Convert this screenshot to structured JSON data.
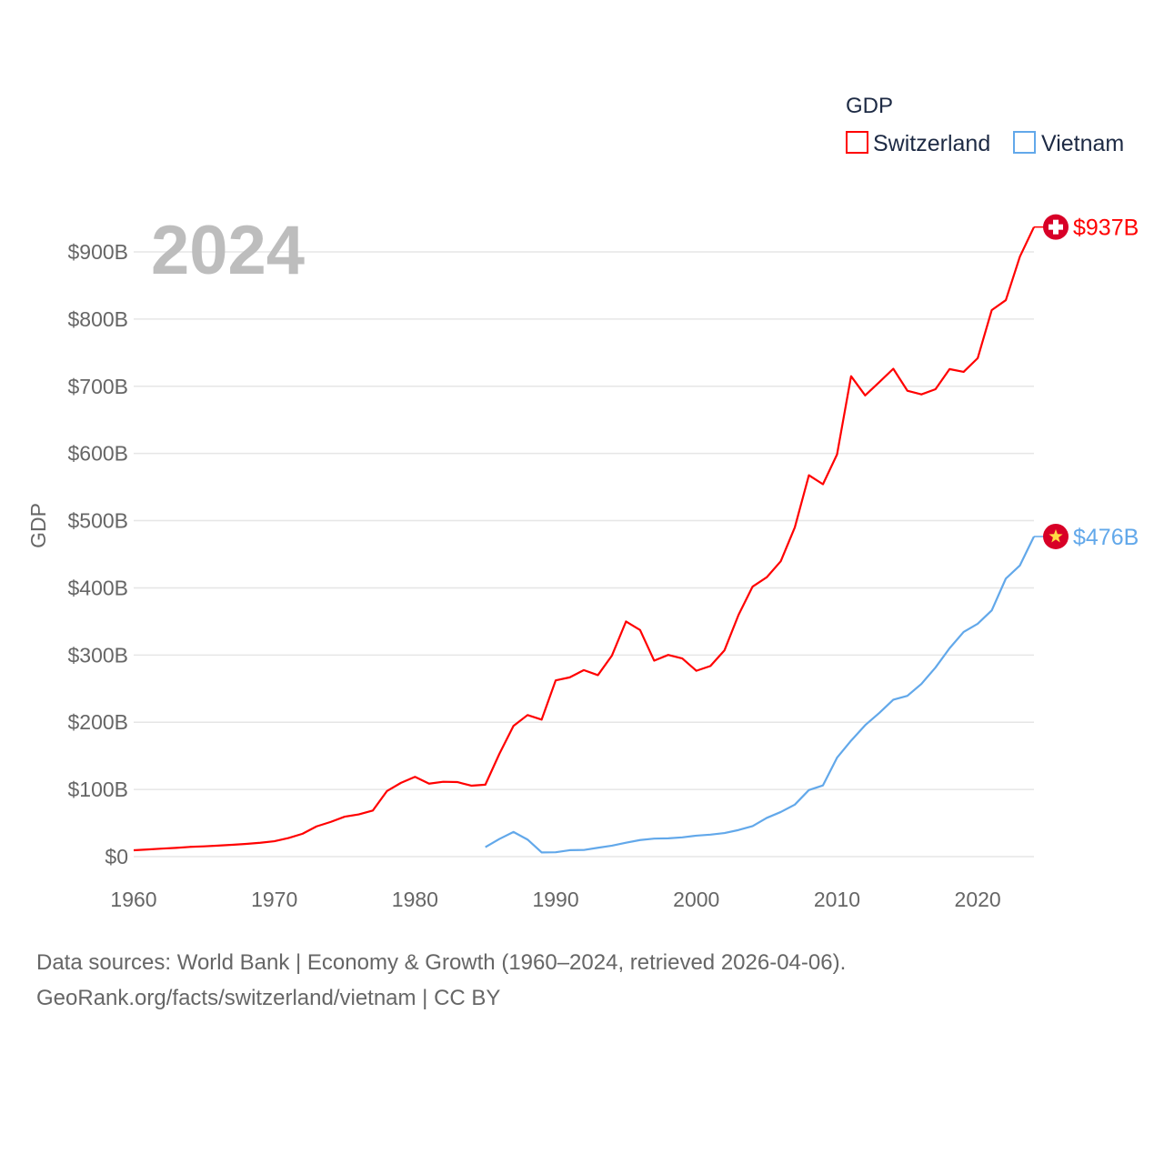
{
  "chart_data": {
    "type": "line",
    "title": "GDP",
    "year_label": "2024",
    "xlabel": "",
    "ylabel": "GDP",
    "xlim": [
      1960,
      2024
    ],
    "ylim": [
      0,
      900
    ],
    "x_ticks": [
      1960,
      1970,
      1980,
      1990,
      2000,
      2010,
      2020
    ],
    "y_ticks": [
      0,
      100,
      200,
      300,
      400,
      500,
      600,
      700,
      800,
      900
    ],
    "y_tick_labels": [
      "$0",
      "$100B",
      "$200B",
      "$300B",
      "$400B",
      "$500B",
      "$600B",
      "$700B",
      "$800B",
      "$900B"
    ],
    "grid": true,
    "legend_position": "top-right",
    "legend_title": "GDP",
    "series": [
      {
        "name": "Switzerland",
        "color": "#ff0000",
        "flag": "swiss-flag",
        "end_label": "$937B",
        "start_year": 1960,
        "values": [
          9.5,
          10.7,
          11.9,
          13.0,
          14.5,
          15.3,
          16.4,
          17.6,
          18.9,
          20.6,
          22.9,
          27.6,
          34.0,
          45.0,
          51.6,
          59.5,
          62.9,
          68.6,
          97.5,
          109.8,
          118.7,
          108.6,
          111.4,
          111.0,
          105.6,
          107.1,
          153.1,
          194.5,
          210.7,
          203.9,
          262.3,
          266.8,
          277.6,
          270.1,
          299.3,
          350.0,
          337.3,
          291.7,
          300.2,
          294.9,
          276.6,
          283.7,
          307.1,
          359.8,
          401.9,
          415.7,
          439.6,
          490.0,
          567.6,
          554.2,
          598.5,
          715.0,
          686.4,
          706.1,
          726.1,
          693.4,
          687.9,
          695.6,
          725.6,
          721.4,
          741.8,
          813.4,
          828.2,
          893.0,
          937.0
        ]
      },
      {
        "name": "Vietnam",
        "color": "#62a8ea",
        "flag": "vietnam-flag",
        "end_label": "$476B",
        "start_year": 1985,
        "values": [
          14.1,
          26.3,
          36.7,
          25.4,
          6.3,
          6.5,
          9.6,
          9.9,
          13.2,
          16.3,
          20.7,
          24.7,
          26.8,
          27.2,
          28.7,
          31.2,
          32.7,
          35.1,
          39.6,
          45.4,
          57.6,
          66.4,
          77.4,
          99.1,
          106.0,
          147.2,
          172.6,
          195.6,
          213.7,
          233.5,
          239.3,
          257.1,
          281.4,
          310.1,
          334.4,
          346.6,
          366.5,
          413.8,
          433.4,
          476.4
        ]
      }
    ]
  },
  "footer": {
    "line1": "Data sources: World Bank | Economy & Growth (1960–2024, retrieved 2026-04-06).",
    "line2": "GeoRank.org/facts/switzerland/vietnam | CC BY"
  }
}
